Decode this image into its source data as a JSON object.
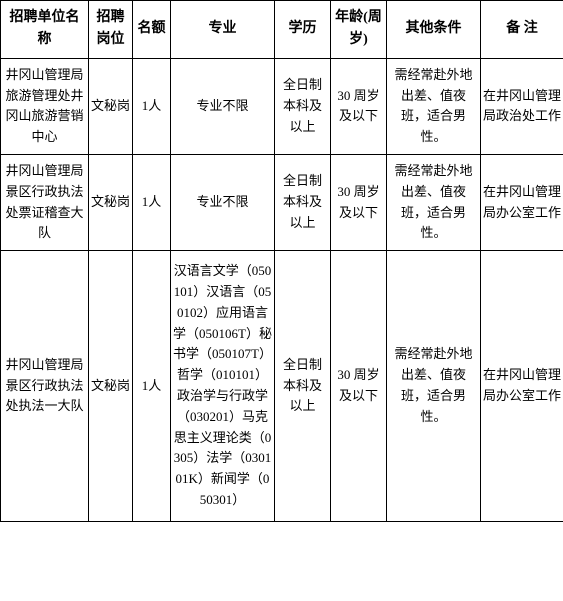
{
  "table": {
    "columns": [
      "招聘单位名称",
      "招聘岗位",
      "名额",
      "专业",
      "学历",
      "年龄(周岁)",
      "其他条件",
      "备  注"
    ],
    "rows": [
      {
        "org": "井冈山管理局旅游管理处井冈山旅游营销中心",
        "post": "文秘岗",
        "quota": "1人",
        "major": "专业不限",
        "edu": "全日制本科及以上",
        "age": "30 周岁及以下",
        "other": "需经常赴外地出差、值夜班，适合男性。",
        "note": "在井冈山管理局政治处工作"
      },
      {
        "org": "井冈山管理局景区行政执法处票证稽查大队",
        "post": "文秘岗",
        "quota": "1人",
        "major": "专业不限",
        "edu": "全日制本科及以上",
        "age": "30 周岁及以下",
        "other": "需经常赴外地出差、值夜班，适合男性。",
        "note": "在井冈山管理局办公室工作"
      },
      {
        "org": "井冈山管理局景区行政执法处执法一大队",
        "post": "文秘岗",
        "quota": "1人",
        "major": "汉语言文学（050101）汉语言（050102）应用语言学（050106T）秘书学（050107T）哲学（010101）政治学与行政学（030201）马克思主义理论类（0305）法学（030101K）新闻学（050301）",
        "edu": "全日制本科及以上",
        "age": "30 周岁及以下",
        "other": "需经常赴外地出差、值夜班，适合男性。",
        "note": "在井冈山管理局办公室工作"
      }
    ],
    "styling": {
      "border_color": "#000000",
      "background_color": "#ffffff",
      "text_color": "#000000",
      "header_fontsize": 14,
      "cell_fontsize": 13,
      "font_family": "SimSun"
    }
  }
}
